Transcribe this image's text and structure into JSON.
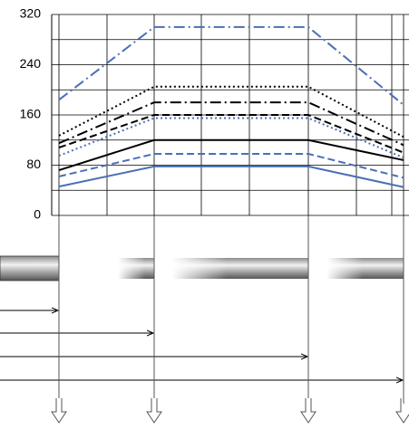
{
  "chart_data": {
    "type": "line",
    "categories": [
      null,
      null,
      null,
      null
    ],
    "series": [
      {
        "color": "#4a6fb5",
        "style": "dashdot",
        "values": [
          184,
          300,
          300,
          176
        ]
      },
      {
        "color": "#000000",
        "style": "dotted",
        "values": [
          127,
          205,
          205,
          125
        ]
      },
      {
        "color": "#000000",
        "style": "dashdot",
        "values": [
          115,
          180,
          180,
          112
        ]
      },
      {
        "color": "#000000",
        "style": "dashed",
        "values": [
          108,
          160,
          160,
          100
        ]
      },
      {
        "color": "#4a6fb5",
        "style": "dotted",
        "values": [
          95,
          155,
          155,
          92
        ]
      },
      {
        "color": "#000000",
        "style": "solid",
        "values": [
          72,
          120,
          120,
          88
        ]
      },
      {
        "color": "#4a6fb5",
        "style": "dashed",
        "values": [
          62,
          98,
          98,
          60
        ]
      },
      {
        "color": "#4a6fb5",
        "style": "solid",
        "values": [
          46,
          78,
          78,
          45
        ]
      }
    ],
    "ylim": [
      0,
      320
    ],
    "yticks": [
      0,
      80,
      160,
      240,
      320
    ],
    "grid": true
  }
}
